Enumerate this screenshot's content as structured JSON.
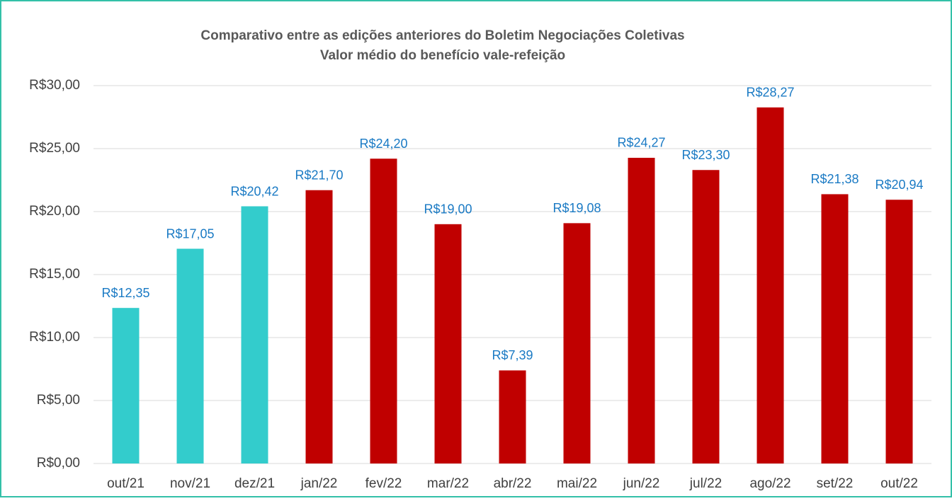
{
  "chart_data": {
    "type": "bar",
    "title": "Comparativo entre as edições anteriores do Boletim Negociações Coletivas",
    "subtitle": "Valor médio do benefício vale-refeição",
    "categories": [
      "out/21",
      "nov/21",
      "dez/21",
      "jan/22",
      "fev/22",
      "mar/22",
      "abr/22",
      "mai/22",
      "jun/22",
      "jul/22",
      "ago/22",
      "set/22",
      "out/22"
    ],
    "values": [
      12.35,
      17.05,
      20.42,
      21.7,
      24.2,
      19.0,
      7.39,
      19.08,
      24.27,
      23.3,
      28.27,
      21.38,
      20.94
    ],
    "value_labels": [
      "R$12,35",
      "R$17,05",
      "R$20,42",
      "R$21,70",
      "R$24,20",
      "R$19,00",
      "R$7,39",
      "R$19,08",
      "R$24,27",
      "R$23,30",
      "R$28,27",
      "R$21,38",
      "R$20,94"
    ],
    "colors": [
      "#33cccc",
      "#33cccc",
      "#33cccc",
      "#c00000",
      "#c00000",
      "#c00000",
      "#c00000",
      "#c00000",
      "#c00000",
      "#c00000",
      "#c00000",
      "#c00000",
      "#c00000"
    ],
    "ylim": [
      0,
      30
    ],
    "yticks": [
      {
        "value": 0,
        "label": "R$0,00"
      },
      {
        "value": 5,
        "label": "R$5,00"
      },
      {
        "value": 10,
        "label": "R$10,00"
      },
      {
        "value": 15,
        "label": "R$15,00"
      },
      {
        "value": 20,
        "label": "R$20,00"
      },
      {
        "value": 25,
        "label": "R$25,00"
      },
      {
        "value": 30,
        "label": "R$30,00"
      }
    ],
    "grid": true
  }
}
